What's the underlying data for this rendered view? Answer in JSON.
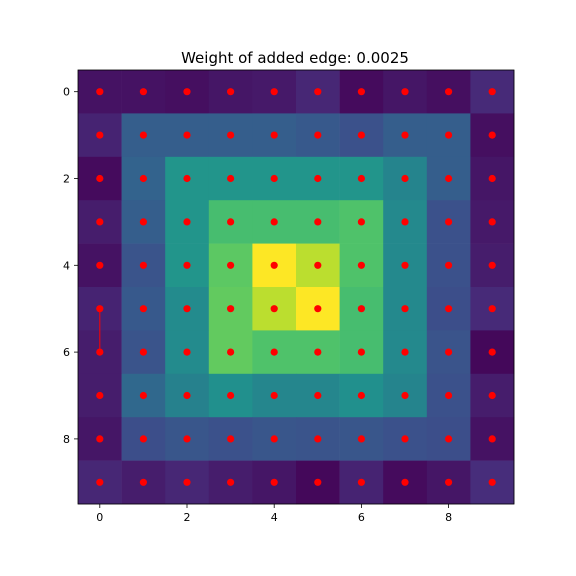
{
  "chart_data": {
    "type": "heatmap",
    "title": "Weight of added edge: 0.0025",
    "xlabel": "",
    "ylabel": "",
    "xlim": [
      -0.5,
      9.5
    ],
    "ylim": [
      9.5,
      -0.5
    ],
    "x_ticks": [
      0,
      2,
      4,
      6,
      8
    ],
    "y_ticks": [
      0,
      2,
      4,
      6,
      8
    ],
    "colormap": "viridis",
    "grid": false,
    "matrix": [
      [
        0.05,
        0.05,
        0.04,
        0.06,
        0.07,
        0.11,
        0.03,
        0.06,
        0.04,
        0.12
      ],
      [
        0.1,
        0.3,
        0.3,
        0.3,
        0.3,
        0.28,
        0.25,
        0.3,
        0.3,
        0.04
      ],
      [
        0.03,
        0.32,
        0.52,
        0.52,
        0.52,
        0.52,
        0.52,
        0.45,
        0.3,
        0.06
      ],
      [
        0.08,
        0.3,
        0.52,
        0.7,
        0.7,
        0.7,
        0.72,
        0.47,
        0.25,
        0.07
      ],
      [
        0.05,
        0.26,
        0.52,
        0.75,
        1.0,
        0.9,
        0.72,
        0.47,
        0.25,
        0.08
      ],
      [
        0.1,
        0.28,
        0.48,
        0.76,
        0.9,
        1.0,
        0.7,
        0.47,
        0.24,
        0.12
      ],
      [
        0.08,
        0.26,
        0.48,
        0.76,
        0.72,
        0.72,
        0.7,
        0.47,
        0.26,
        0.02
      ],
      [
        0.08,
        0.34,
        0.44,
        0.5,
        0.46,
        0.46,
        0.5,
        0.45,
        0.25,
        0.08
      ],
      [
        0.06,
        0.24,
        0.27,
        0.25,
        0.27,
        0.26,
        0.27,
        0.25,
        0.24,
        0.05
      ],
      [
        0.11,
        0.08,
        0.11,
        0.08,
        0.06,
        0.02,
        0.1,
        0.03,
        0.06,
        0.13
      ]
    ],
    "points": {
      "color": "#ff0000",
      "coords": "all grid nodes (x 0-9, y 0-9)"
    },
    "added_edge": {
      "from": [
        0,
        5
      ],
      "to": [
        0,
        6
      ],
      "color": "#ff0000",
      "weight": 0.0025
    }
  }
}
